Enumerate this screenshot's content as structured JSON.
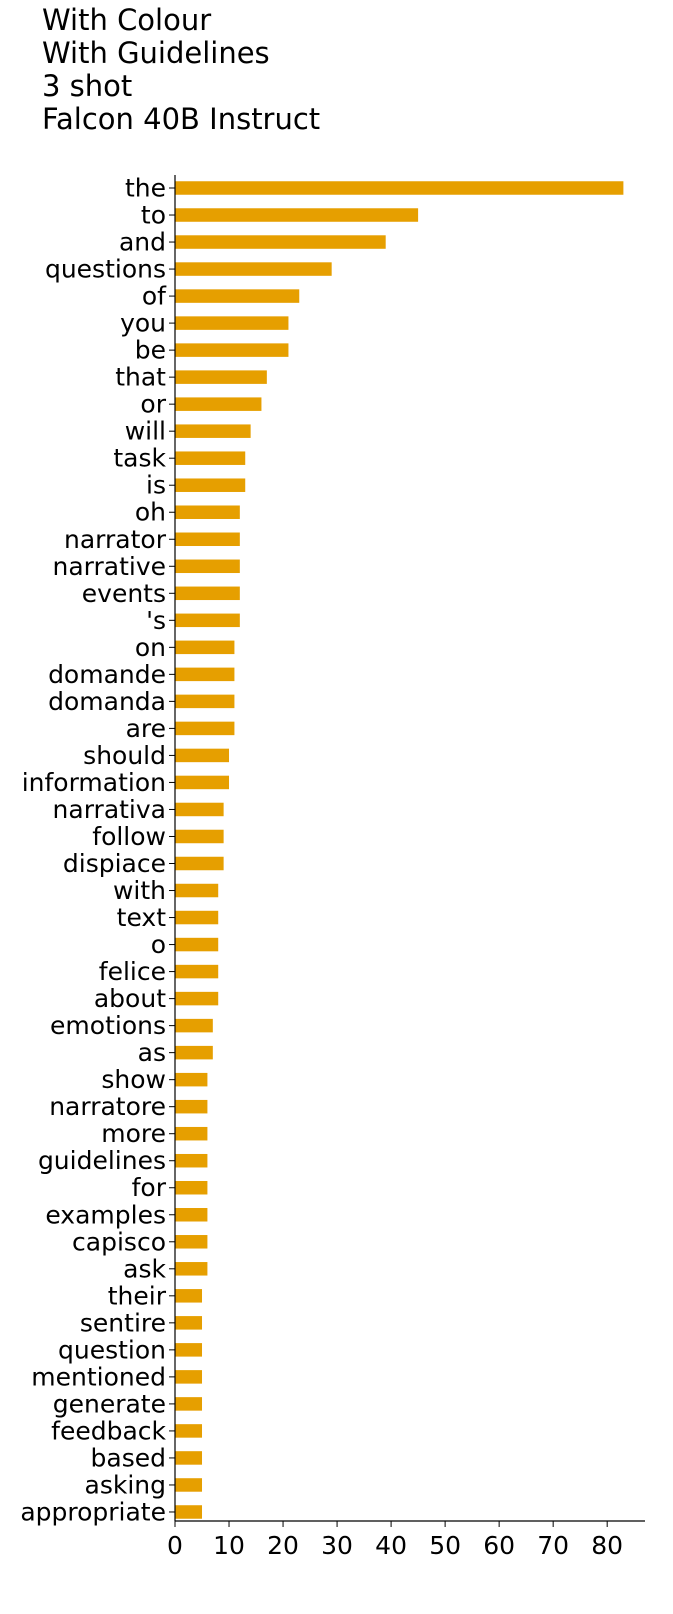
{
  "chart_data": {
    "type": "bar",
    "orientation": "horizontal",
    "title_lines": [
      "With Colour",
      "With Guidelines",
      "3 shot",
      "Falcon 40B Instruct"
    ],
    "xlabel": "",
    "ylabel": "",
    "xlim": [
      0,
      87
    ],
    "x_ticks": [
      0,
      10,
      20,
      30,
      40,
      50,
      60,
      70,
      80
    ],
    "grid": false,
    "bar_color": "#E69F00",
    "categories": [
      "the",
      "to",
      "and",
      "questions",
      "of",
      "you",
      "be",
      "that",
      "or",
      "will",
      "task",
      "is",
      "oh",
      "narrator",
      "narrative",
      "events",
      "'s",
      "on",
      "domande",
      "domanda",
      "are",
      "should",
      "information",
      "narrativa",
      "follow",
      "dispiace",
      "with",
      "text",
      "o",
      "felice",
      "about",
      "emotions",
      "as",
      "show",
      "narratore",
      "more",
      "guidelines",
      "for",
      "examples",
      "capisco",
      "ask",
      "their",
      "sentire",
      "question",
      "mentioned",
      "generate",
      "feedback",
      "based",
      "asking",
      "appropriate"
    ],
    "values": [
      83,
      45,
      39,
      29,
      23,
      21,
      21,
      17,
      16,
      14,
      13,
      13,
      12,
      12,
      12,
      12,
      12,
      11,
      11,
      11,
      11,
      10,
      10,
      9,
      9,
      9,
      8,
      8,
      8,
      8,
      8,
      7,
      7,
      6,
      6,
      6,
      6,
      6,
      6,
      6,
      6,
      5,
      5,
      5,
      5,
      5,
      5,
      5,
      5,
      5
    ]
  }
}
